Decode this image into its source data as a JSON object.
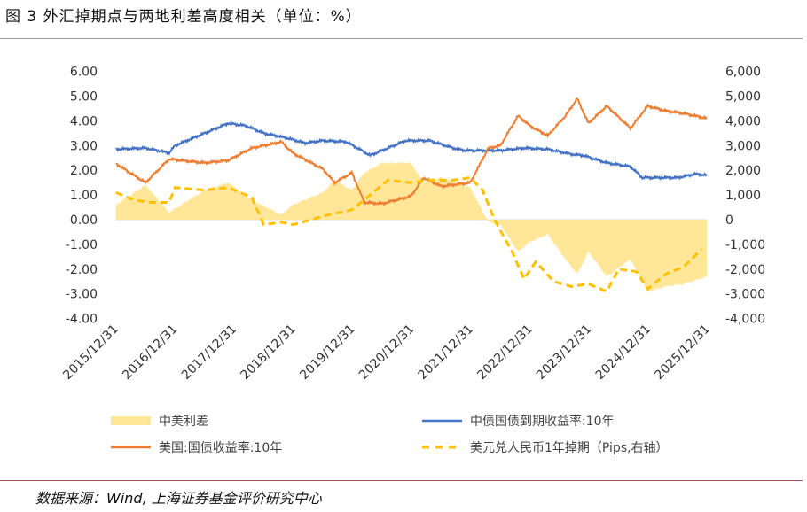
{
  "title": "图 3 外汇掉期点与两地利差高度相关（单位：%）",
  "source": "数据来源：Wind, 上海证券基金评价研究中心",
  "chart_data": {
    "type": "line",
    "title": "外汇掉期点与两地利差高度相关（单位：%）",
    "left_ylim": [
      -4,
      6
    ],
    "right_ylim": [
      -4000,
      6000
    ],
    "left_ticks": [
      "6.00",
      "5.00",
      "4.00",
      "3.00",
      "2.00",
      "1.00",
      "0.00",
      "-1.00",
      "-2.00",
      "-3.00",
      "-4.00"
    ],
    "right_ticks": [
      "6,000",
      "5,000",
      "4,000",
      "3,000",
      "2,000",
      "1,000",
      "0",
      "-1,000",
      "-2,000",
      "-3,000",
      "-4,000"
    ],
    "x_ticks": [
      "2015/12/31",
      "2016/12/31",
      "2017/12/31",
      "2018/12/31",
      "2019/12/31",
      "2020/12/31",
      "2021/12/31",
      "2022/12/31",
      "2023/12/31",
      "2024/12/31",
      "2025/12/31"
    ],
    "legend_position": "bottom",
    "series": [
      {
        "name": "中美利差",
        "kind": "area",
        "axis": "left",
        "color": "#FFE699",
        "points": [
          [
            2016.0,
            0.6
          ],
          [
            2016.5,
            1.4
          ],
          [
            2016.9,
            0.3
          ],
          [
            2017.5,
            1.2
          ],
          [
            2017.9,
            1.5
          ],
          [
            2018.3,
            0.8
          ],
          [
            2018.8,
            0.2
          ],
          [
            2018.99,
            0.6
          ],
          [
            2019.5,
            1.1
          ],
          [
            2019.7,
            1.6
          ],
          [
            2019.99,
            1.2
          ],
          [
            2020.2,
            1.9
          ],
          [
            2020.5,
            2.3
          ],
          [
            2020.99,
            2.3
          ],
          [
            2021.2,
            1.5
          ],
          [
            2021.5,
            1.7
          ],
          [
            2021.99,
            1.3
          ],
          [
            2022.3,
            -0.1
          ],
          [
            2022.5,
            -0.2
          ],
          [
            2022.8,
            -1.3
          ],
          [
            2023.0,
            -0.9
          ],
          [
            2023.3,
            -0.6
          ],
          [
            2023.6,
            -1.6
          ],
          [
            2023.8,
            -2.2
          ],
          [
            2023.99,
            -1.3
          ],
          [
            2024.3,
            -2.3
          ],
          [
            2024.7,
            -1.6
          ],
          [
            2024.99,
            -2.9
          ],
          [
            2025.3,
            -2.7
          ],
          [
            2025.6,
            -2.6
          ],
          [
            2025.99,
            -2.3
          ]
        ]
      },
      {
        "name": "中债国债到期收益率:10年",
        "kind": "line",
        "axis": "left",
        "color": "#4472C4",
        "points": [
          [
            2016.0,
            2.85
          ],
          [
            2016.5,
            2.9
          ],
          [
            2016.9,
            2.7
          ],
          [
            2017.0,
            3.0
          ],
          [
            2017.5,
            3.5
          ],
          [
            2017.9,
            3.9
          ],
          [
            2018.2,
            3.8
          ],
          [
            2018.5,
            3.5
          ],
          [
            2018.9,
            3.3
          ],
          [
            2019.2,
            3.1
          ],
          [
            2019.5,
            3.2
          ],
          [
            2019.9,
            3.15
          ],
          [
            2020.3,
            2.6
          ],
          [
            2020.6,
            2.9
          ],
          [
            2020.9,
            3.2
          ],
          [
            2021.3,
            3.2
          ],
          [
            2021.7,
            2.9
          ],
          [
            2021.9,
            2.8
          ],
          [
            2022.5,
            2.8
          ],
          [
            2022.9,
            2.9
          ],
          [
            2023.3,
            2.85
          ],
          [
            2023.7,
            2.65
          ],
          [
            2023.9,
            2.6
          ],
          [
            2024.3,
            2.3
          ],
          [
            2024.7,
            2.15
          ],
          [
            2024.9,
            1.7
          ],
          [
            2025.2,
            1.7
          ],
          [
            2025.5,
            1.7
          ],
          [
            2025.8,
            1.85
          ],
          [
            2025.99,
            1.8
          ]
        ]
      },
      {
        "name": "美国:国债收益率:10年",
        "kind": "line",
        "axis": "left",
        "color": "#ED7D31",
        "points": [
          [
            2016.0,
            2.27
          ],
          [
            2016.5,
            1.5
          ],
          [
            2016.9,
            2.45
          ],
          [
            2017.5,
            2.3
          ],
          [
            2017.9,
            2.4
          ],
          [
            2018.3,
            2.9
          ],
          [
            2018.8,
            3.15
          ],
          [
            2018.99,
            2.7
          ],
          [
            2019.5,
            2.05
          ],
          [
            2019.7,
            1.5
          ],
          [
            2019.99,
            1.9
          ],
          [
            2020.2,
            0.7
          ],
          [
            2020.5,
            0.65
          ],
          [
            2020.99,
            0.95
          ],
          [
            2021.2,
            1.7
          ],
          [
            2021.5,
            1.35
          ],
          [
            2021.99,
            1.5
          ],
          [
            2022.3,
            2.9
          ],
          [
            2022.5,
            3.0
          ],
          [
            2022.8,
            4.2
          ],
          [
            2023.0,
            3.8
          ],
          [
            2023.3,
            3.4
          ],
          [
            2023.6,
            4.2
          ],
          [
            2023.8,
            4.9
          ],
          [
            2023.99,
            3.9
          ],
          [
            2024.3,
            4.6
          ],
          [
            2024.7,
            3.7
          ],
          [
            2024.99,
            4.6
          ],
          [
            2025.3,
            4.4
          ],
          [
            2025.6,
            4.3
          ],
          [
            2025.99,
            4.1
          ]
        ]
      },
      {
        "name": "美元兑人民币1年掉期（Pips,右轴）",
        "kind": "dashed",
        "axis": "right",
        "color": "#FFC000",
        "points": [
          [
            2016.0,
            1100
          ],
          [
            2016.3,
            800
          ],
          [
            2016.6,
            700
          ],
          [
            2016.9,
            700
          ],
          [
            2017.0,
            1300
          ],
          [
            2017.5,
            1200
          ],
          [
            2017.9,
            1300
          ],
          [
            2018.3,
            900
          ],
          [
            2018.5,
            -200
          ],
          [
            2018.8,
            -100
          ],
          [
            2019.0,
            -200
          ],
          [
            2019.3,
            0
          ],
          [
            2019.6,
            200
          ],
          [
            2019.99,
            400
          ],
          [
            2020.3,
            1000
          ],
          [
            2020.6,
            1600
          ],
          [
            2020.99,
            1500
          ],
          [
            2021.3,
            1600
          ],
          [
            2021.7,
            1600
          ],
          [
            2021.99,
            1700
          ],
          [
            2022.2,
            1200
          ],
          [
            2022.4,
            0
          ],
          [
            2022.7,
            -1300
          ],
          [
            2022.9,
            -2400
          ],
          [
            2023.1,
            -1700
          ],
          [
            2023.4,
            -2500
          ],
          [
            2023.7,
            -2700
          ],
          [
            2023.99,
            -2600
          ],
          [
            2024.3,
            -2900
          ],
          [
            2024.5,
            -2000
          ],
          [
            2024.8,
            -2100
          ],
          [
            2024.99,
            -2800
          ],
          [
            2025.3,
            -2200
          ],
          [
            2025.6,
            -1900
          ],
          [
            2025.9,
            -1200
          ]
        ]
      }
    ]
  }
}
